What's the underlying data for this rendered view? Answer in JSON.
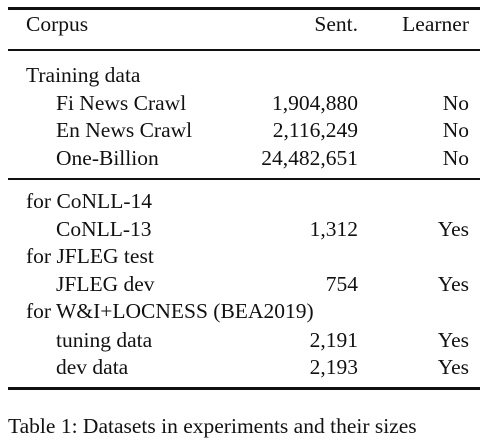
{
  "table": {
    "headers": {
      "corpus": "Corpus",
      "sent": "Sent.",
      "learner": "Learner"
    },
    "groups": [
      {
        "label": "Training data",
        "rows": [
          {
            "corpus": "Fi News Crawl",
            "sent": "1,904,880",
            "learner": "No"
          },
          {
            "corpus": "En News Crawl",
            "sent": "2,116,249",
            "learner": "No"
          },
          {
            "corpus": "One-Billion",
            "sent": "24,482,651",
            "learner": "No"
          }
        ]
      },
      {
        "label": "for CoNLL-14",
        "rows": [
          {
            "corpus": "CoNLL-13",
            "sent": "1,312",
            "learner": "Yes"
          }
        ]
      },
      {
        "label": "for JFLEG test",
        "rows": [
          {
            "corpus": "JFLEG dev",
            "sent": "754",
            "learner": "Yes"
          }
        ]
      },
      {
        "label": "for W&I+LOCNESS (BEA2019)",
        "rows": [
          {
            "corpus": "tuning data",
            "sent": "2,191",
            "learner": "Yes"
          },
          {
            "corpus": "dev data",
            "sent": "2,193",
            "learner": "Yes"
          }
        ]
      }
    ]
  },
  "caption": "Table 1: Datasets in experiments and their sizes"
}
